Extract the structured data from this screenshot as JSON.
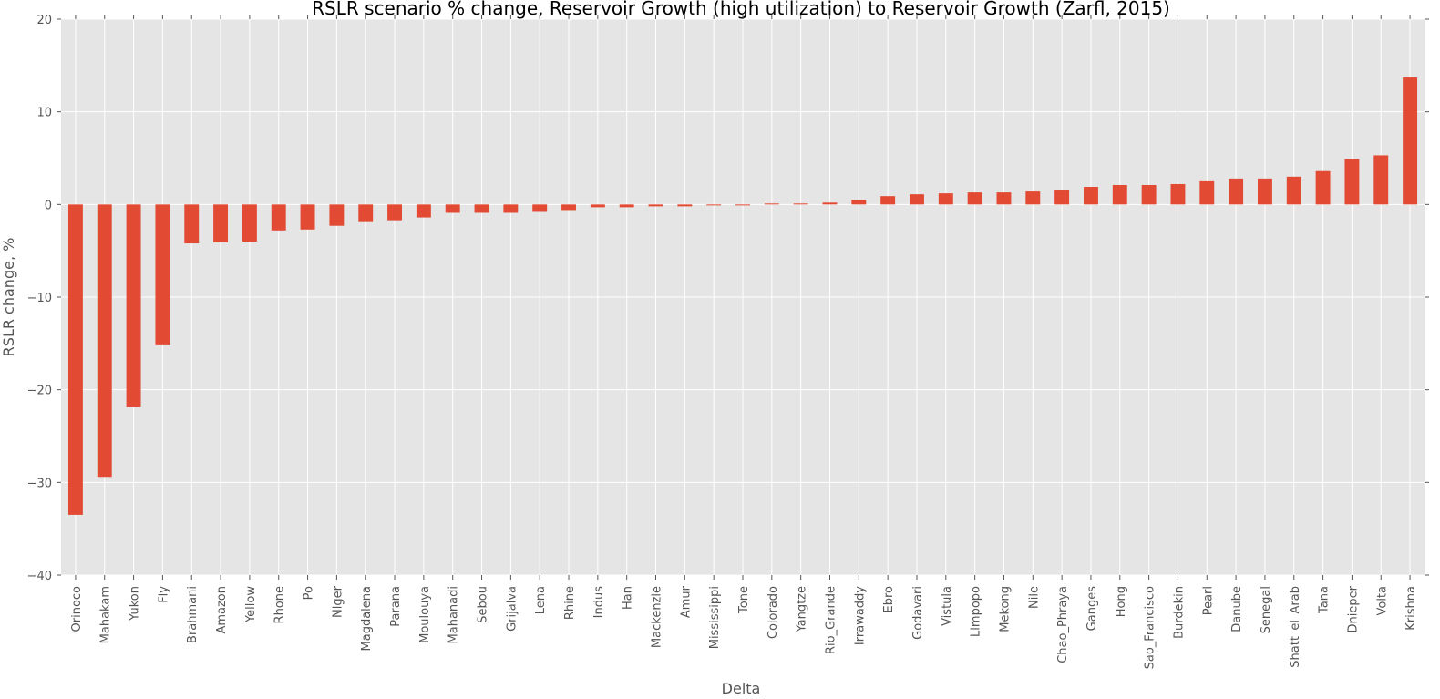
{
  "chart_data": {
    "type": "bar",
    "title": "RSLR scenario % change, Reservoir Growth (high utilization) to Reservoir Growth (Zarfl, 2015)",
    "xlabel": "Delta",
    "ylabel": "RSLR change, %",
    "ylim": [
      -40,
      20
    ],
    "yticks": [
      -40,
      -30,
      -20,
      -10,
      0,
      10,
      20
    ],
    "ytick_labels": [
      "−40",
      "−30",
      "−20",
      "−10",
      "0",
      "10",
      "20"
    ],
    "grid": true,
    "legend": "none",
    "colors": {
      "bar": "#E24A33",
      "background": "#E5E5E5",
      "grid": "#FFFFFF"
    },
    "categories": [
      "Orinoco",
      "Mahakam",
      "Yukon",
      "Fly",
      "Brahmani",
      "Amazon",
      "Yellow",
      "Rhone",
      "Po",
      "Niger",
      "Magdalena",
      "Parana",
      "Moulouya",
      "Mahanadi",
      "Sebou",
      "Grijalva",
      "Lena",
      "Rhine",
      "Indus",
      "Han",
      "Mackenzie",
      "Amur",
      "Mississippi",
      "Tone",
      "Colorado",
      "Yangtze",
      "Rio_Grande",
      "Irrawaddy",
      "Ebro",
      "Godavari",
      "Vistula",
      "Limpopo",
      "Mekong",
      "Nile",
      "Chao_Phraya",
      "Ganges",
      "Hong",
      "Sao_Francisco",
      "Burdekin",
      "Pearl",
      "Danube",
      "Senegal",
      "Shatt_el_Arab",
      "Tana",
      "Dnieper",
      "Volta",
      "Krishna"
    ],
    "values": [
      -33.5,
      -29.4,
      -21.9,
      -15.2,
      -4.2,
      -4.1,
      -4.0,
      -2.8,
      -2.7,
      -2.3,
      -1.9,
      -1.7,
      -1.4,
      -0.9,
      -0.9,
      -0.9,
      -0.8,
      -0.6,
      -0.3,
      -0.3,
      -0.2,
      -0.2,
      -0.1,
      -0.1,
      0.1,
      0.1,
      0.2,
      0.5,
      0.9,
      1.1,
      1.2,
      1.3,
      1.3,
      1.4,
      1.6,
      1.9,
      2.1,
      2.1,
      2.2,
      2.5,
      2.8,
      2.8,
      3.0,
      3.6,
      4.9,
      5.3,
      13.7
    ]
  }
}
